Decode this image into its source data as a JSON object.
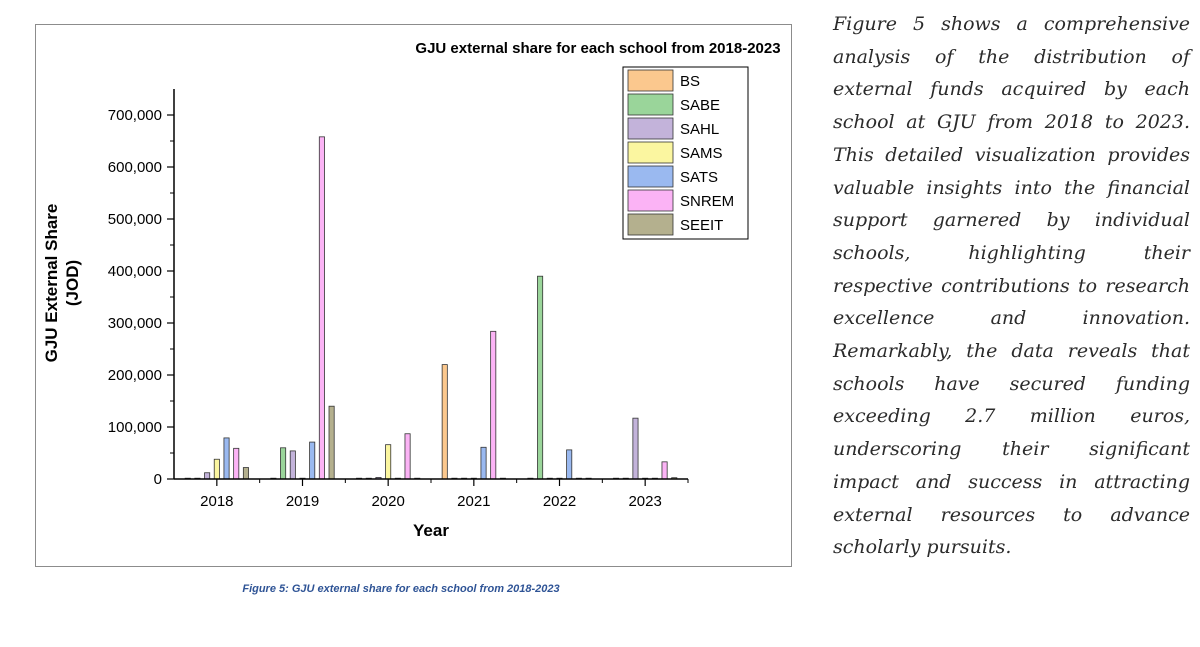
{
  "chart_data": {
    "type": "bar",
    "title": "GJU external share for each school from 2018-2023",
    "xlabel": "Year",
    "ylabel_line1": "GJU External Share",
    "ylabel_line2": "(JOD)",
    "ylim": [
      0,
      750000
    ],
    "yticks": [
      "0",
      "100,000",
      "200,000",
      "300,000",
      "400,000",
      "500,000",
      "600,000",
      "700,000"
    ],
    "ytick_values": [
      0,
      100000,
      200000,
      300000,
      400000,
      500000,
      600000,
      700000
    ],
    "categories": [
      "2018",
      "2019",
      "2020",
      "2021",
      "2022",
      "2023"
    ],
    "legend_position": "top-right",
    "series": [
      {
        "name": "BS",
        "color": "#fbc88e",
        "values": [
          0,
          0,
          0,
          220000,
          0,
          0
        ]
      },
      {
        "name": "SABE",
        "color": "#9ad59a",
        "values": [
          0,
          60000,
          0,
          0,
          390000,
          0
        ]
      },
      {
        "name": "SAHL",
        "color": "#c3b3da",
        "values": [
          12000,
          54000,
          3000,
          0,
          0,
          117000
        ]
      },
      {
        "name": "SAMS",
        "color": "#fbf6a0",
        "values": [
          38000,
          0,
          66000,
          0,
          0,
          0
        ]
      },
      {
        "name": "SATS",
        "color": "#9ab9f0",
        "values": [
          79000,
          71000,
          0,
          61000,
          56000,
          0
        ]
      },
      {
        "name": "SNREM",
        "color": "#fbb3f5",
        "values": [
          59000,
          658000,
          87000,
          284000,
          0,
          33000
        ]
      },
      {
        "name": "SEEIT",
        "color": "#b4b08e",
        "values": [
          22000,
          140000,
          0,
          0,
          1500,
          2500
        ]
      }
    ]
  },
  "caption": "Figure 5: GJU external share for each school from 2018-2023",
  "paragraph": "Figure 5 shows a comprehensive analysis of the distribution of external funds acquired by each school at GJU from 2018 to 2023. This detailed visualization provides valuable insights into the financial support garnered by individual schools, highlighting their respective contributions to research excellence and innovation. Remarkably, the data reveals that schools have secured funding exceeding 2.7 million euros, underscoring their significant impact and success in attracting external resources to advance scholarly pursuits."
}
